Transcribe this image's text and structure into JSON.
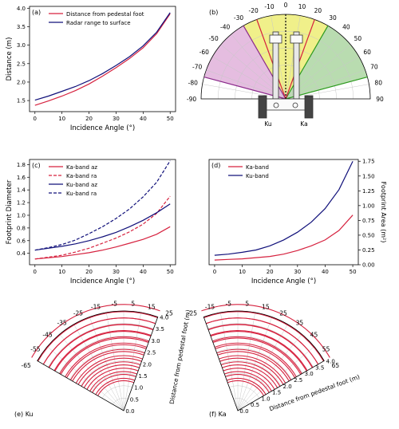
{
  "colors": {
    "ka": "#d6223f",
    "ku": "#10107a",
    "green": "#2c9a1d",
    "purple": "#8b2a8b",
    "yellow": "#e5e53a",
    "greenFill": "#b9dcb0",
    "purpleFill": "#e5bde0",
    "yellowFill": "#f0f08a",
    "grid": "#c8c8c8"
  },
  "chart_data": [
    {
      "panel": "(a)",
      "type": "line",
      "xlabel": "Incidence Angle (°)",
      "ylabel": "Distance (m)",
      "xlim": [
        -2,
        52
      ],
      "ylim": [
        1.2,
        4.05
      ],
      "xticks": [
        "0",
        "10",
        "20",
        "30",
        "40",
        "50"
      ],
      "yticks": [
        "1.5",
        "2.0",
        "2.5",
        "3.0",
        "3.5",
        "4.0"
      ],
      "legend": "top-left",
      "x": [
        0,
        5,
        10,
        15,
        20,
        25,
        30,
        35,
        40,
        45,
        50
      ],
      "series": [
        {
          "name": "Distance from pedestal foot",
          "color": "ka",
          "values": [
            1.37,
            1.49,
            1.62,
            1.77,
            1.95,
            2.16,
            2.39,
            2.64,
            2.93,
            3.31,
            3.85
          ]
        },
        {
          "name": "Radar range to surface",
          "color": "ku",
          "values": [
            1.51,
            1.62,
            1.75,
            1.88,
            2.04,
            2.23,
            2.45,
            2.69,
            2.98,
            3.35,
            3.88
          ]
        }
      ]
    },
    {
      "panel": "(b)",
      "type": "polar",
      "angle_labels_left": [
        "-90",
        "-80",
        "-70",
        "-60",
        "-50",
        "-40",
        "-30",
        "-20",
        "-10"
      ],
      "angle_labels_right": [
        "0",
        "10",
        "20",
        "30",
        "40",
        "50",
        "60",
        "70",
        "80",
        "90"
      ],
      "labels": [
        "Ku",
        "Ka"
      ]
    },
    {
      "panel": "(c)",
      "type": "line",
      "xlabel": "Incidence Angle (°)",
      "ylabel": "Footprint Diameter",
      "xlim": [
        -2,
        52
      ],
      "ylim": [
        0.22,
        1.88
      ],
      "xticks": [
        "0",
        "10",
        "20",
        "30",
        "40",
        "50"
      ],
      "yticks": [
        "0.4",
        "0.6",
        "0.8",
        "1.0",
        "1.2",
        "1.4",
        "1.6",
        "1.8"
      ],
      "legend": "top-left",
      "x": [
        0,
        5,
        10,
        15,
        20,
        25,
        30,
        35,
        40,
        45,
        50
      ],
      "series": [
        {
          "name": "Ka-band az",
          "color": "ka",
          "dashed": false,
          "values": [
            0.31,
            0.33,
            0.35,
            0.38,
            0.41,
            0.45,
            0.5,
            0.56,
            0.62,
            0.7,
            0.82
          ]
        },
        {
          "name": "Ka-band ra",
          "color": "ka",
          "dashed": true,
          "values": [
            0.31,
            0.34,
            0.37,
            0.42,
            0.48,
            0.56,
            0.64,
            0.74,
            0.86,
            1.03,
            1.3
          ]
        },
        {
          "name": "Ku-band az",
          "color": "ku",
          "dashed": false,
          "values": [
            0.45,
            0.48,
            0.51,
            0.55,
            0.6,
            0.66,
            0.73,
            0.82,
            0.92,
            1.04,
            1.18
          ]
        },
        {
          "name": "Ku-band ra",
          "color": "ku",
          "dashed": true,
          "values": [
            0.45,
            0.49,
            0.54,
            0.61,
            0.71,
            0.82,
            0.95,
            1.1,
            1.29,
            1.52,
            1.86
          ]
        }
      ]
    },
    {
      "panel": "(d)",
      "type": "line",
      "xlabel": "Incidence Angle (°)",
      "ylabel": "Footprint Area (m²)",
      "xlim": [
        -2,
        52
      ],
      "ylim": [
        0,
        1.78
      ],
      "xticks": [
        "0",
        "10",
        "20",
        "30",
        "40",
        "50"
      ],
      "yticks": [
        "0.00",
        "0.25",
        "0.50",
        "0.75",
        "1.00",
        "1.25",
        "1.50",
        "1.75"
      ],
      "legend": "top-left",
      "x": [
        0,
        5,
        10,
        15,
        20,
        25,
        30,
        35,
        40,
        45,
        50
      ],
      "series": [
        {
          "name": "Ka-band",
          "color": "ka",
          "values": [
            0.08,
            0.09,
            0.1,
            0.12,
            0.14,
            0.18,
            0.24,
            0.32,
            0.42,
            0.58,
            0.84
          ]
        },
        {
          "name": "Ku-band",
          "color": "ku",
          "values": [
            0.16,
            0.18,
            0.21,
            0.25,
            0.32,
            0.42,
            0.55,
            0.72,
            0.95,
            1.27,
            1.75
          ]
        }
      ]
    },
    {
      "panel": "(e) Ku",
      "type": "polar",
      "radial_label": "Distance from pedestal foot (m)",
      "angle_labels": [
        "-65",
        "-55",
        "-45",
        "-35",
        "-25",
        "-15",
        "-5",
        "5",
        "15",
        "25"
      ],
      "radial_labels": [
        "0.0",
        "0.5",
        "1.0",
        "1.5",
        "2.0",
        "2.5",
        "3.0",
        "3.5",
        "4.0"
      ]
    },
    {
      "panel": "(f) Ka",
      "type": "polar",
      "radial_label": "Distance from pedestal foot (m)",
      "angle_labels": [
        "-25",
        "-15",
        "-5",
        "5",
        "15",
        "25",
        "35",
        "45",
        "55",
        "65"
      ],
      "radial_labels": [
        "0.0",
        "0.5",
        "1.0",
        "1.5",
        "2.0",
        "2.5",
        "3.0",
        "3.5",
        "4.0"
      ]
    }
  ]
}
